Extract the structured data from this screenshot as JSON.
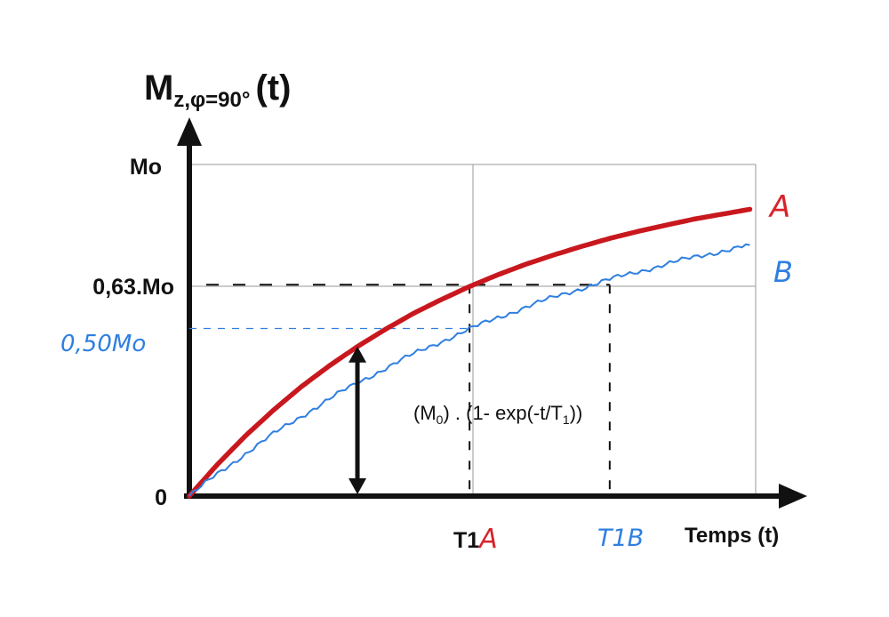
{
  "chart_data": {
    "type": "line",
    "title": {
      "main": "M",
      "subscript": "z,φ=90°",
      "suffix": "(t)"
    },
    "xlabel": "Temps (t)",
    "ylabel_ticks": {
      "top": "Mo",
      "mid": "0,63.Mo",
      "zero": "0",
      "handwritten": "0,50Mo"
    },
    "x_ticks": {
      "t1a_prefix": "T1",
      "t1a_suffix": "A",
      "t1b": "T1B"
    },
    "ylim": [
      0,
      1
    ],
    "xlim": [
      0,
      2
    ],
    "grid": true,
    "annotation": {
      "formula_main": "(M",
      "formula_sub0": "0",
      "formula_mid": ") . (1- exp(-t/T",
      "formula_sub1": "1",
      "formula_end": "))"
    },
    "series": [
      {
        "name": "A",
        "color": "#c8181e",
        "x": [
          0,
          0.1,
          0.2,
          0.3,
          0.4,
          0.5,
          0.6,
          0.7,
          0.8,
          0.9,
          1.0,
          1.1,
          1.2,
          1.3,
          1.4,
          1.5,
          1.6,
          1.7,
          1.8,
          1.9,
          2.0
        ],
        "y": [
          0,
          0.095,
          0.181,
          0.259,
          0.33,
          0.393,
          0.451,
          0.503,
          0.551,
          0.593,
          0.632,
          0.667,
          0.699,
          0.727,
          0.753,
          0.777,
          0.798,
          0.817,
          0.835,
          0.85,
          0.865
        ]
      },
      {
        "name": "B",
        "color": "#2f7fe0",
        "x": [
          0,
          0.1,
          0.2,
          0.3,
          0.4,
          0.5,
          0.6,
          0.7,
          0.8,
          0.9,
          1.0,
          1.1,
          1.2,
          1.3,
          1.4,
          1.5,
          1.6,
          1.7,
          1.8,
          1.9,
          2.0
        ],
        "y": [
          0,
          0.066,
          0.128,
          0.187,
          0.241,
          0.293,
          0.341,
          0.386,
          0.428,
          0.467,
          0.503,
          0.538,
          0.57,
          0.599,
          0.627,
          0.653,
          0.677,
          0.699,
          0.72,
          0.739,
          0.757
        ]
      }
    ],
    "reference_lines": {
      "y_063": 0.632,
      "y_050": 0.5,
      "t1a": 1.0,
      "t1b": 1.5
    },
    "arrow_x": 0.6
  }
}
